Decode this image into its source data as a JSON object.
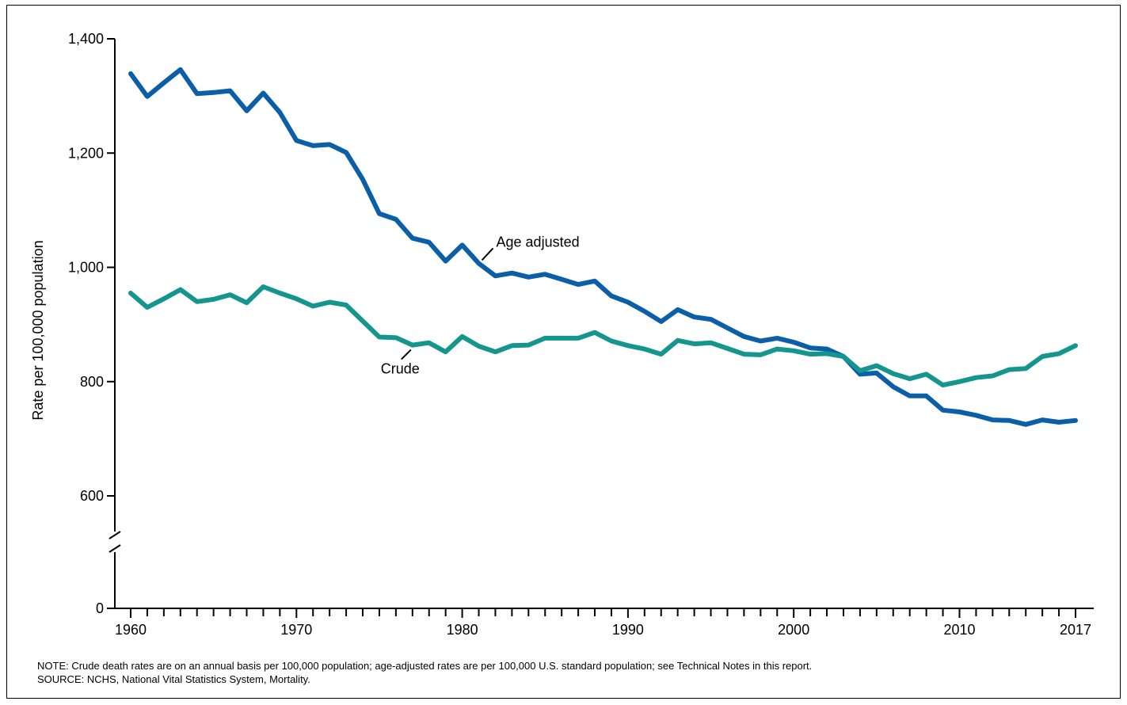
{
  "chart_data": {
    "type": "line",
    "title": "",
    "xlabel": "",
    "ylabel": "Rate per 100,000 population",
    "ylim": [
      0,
      1400
    ],
    "axis_break": {
      "between": [
        0,
        600
      ]
    },
    "y_ticks": [
      0,
      600,
      800,
      1000,
      1200,
      1400
    ],
    "y_tick_labels": [
      "0",
      "600",
      "800",
      "1,000",
      "1,200",
      "1,400"
    ],
    "x_ticks": [
      1960,
      1970,
      1980,
      1990,
      2000,
      2010,
      2017
    ],
    "x_tick_labels": [
      "1960",
      "1970",
      "1980",
      "1990",
      "2000",
      "2010",
      "2017"
    ],
    "grid": false,
    "x": [
      1960,
      1961,
      1962,
      1963,
      1964,
      1965,
      1966,
      1967,
      1968,
      1969,
      1970,
      1971,
      1972,
      1973,
      1974,
      1975,
      1976,
      1977,
      1978,
      1979,
      1980,
      1981,
      1982,
      1983,
      1984,
      1985,
      1986,
      1987,
      1988,
      1989,
      1990,
      1991,
      1992,
      1993,
      1994,
      1995,
      1996,
      1997,
      1998,
      1999,
      2000,
      2001,
      2002,
      2003,
      2004,
      2005,
      2006,
      2007,
      2008,
      2009,
      2010,
      2011,
      2012,
      2013,
      2014,
      2015,
      2016,
      2017
    ],
    "series": [
      {
        "name": "Age adjusted",
        "color": "#0b5ea8",
        "values": [
          1339,
          1299,
          1323,
          1346,
          1304,
          1306,
          1309,
          1274,
          1305,
          1271,
          1222,
          1213,
          1215,
          1201,
          1154,
          1094,
          1084,
          1051,
          1044,
          1011,
          1039,
          1007,
          985,
          990,
          983,
          988,
          979,
          970,
          976,
          950,
          939,
          923,
          905,
          926,
          913,
          909,
          894,
          879,
          871,
          876,
          869,
          859,
          857,
          844,
          813,
          815,
          791,
          775,
          775,
          750,
          747,
          741,
          733,
          732,
          725,
          733,
          729,
          732
        ]
      },
      {
        "name": "Crude",
        "color": "#14968e",
        "values": [
          955,
          930,
          945,
          961,
          940,
          944,
          952,
          938,
          966,
          955,
          945,
          932,
          939,
          934,
          906,
          878,
          877,
          864,
          868,
          852,
          879,
          862,
          852,
          863,
          864,
          876,
          876,
          876,
          886,
          871,
          863,
          857,
          848,
          872,
          866,
          868,
          858,
          848,
          847,
          857,
          854,
          848,
          849,
          844,
          819,
          828,
          814,
          805,
          813,
          794,
          800,
          807,
          810,
          821,
          823,
          844,
          849,
          863
        ]
      }
    ],
    "annotations": [
      {
        "text": "Age adjusted",
        "series": "Age adjusted",
        "at_x": 1981
      },
      {
        "text": "Crude",
        "series": "Crude",
        "at_x": 1977
      }
    ]
  },
  "notes": {
    "note": "NOTE: Crude death rates are on an annual basis per 100,000 population; age-adjusted rates are per 100,000 U.S. standard population; see Technical Notes in this report.",
    "source": "SOURCE: NCHS, National Vital Statistics System, Mortality."
  }
}
